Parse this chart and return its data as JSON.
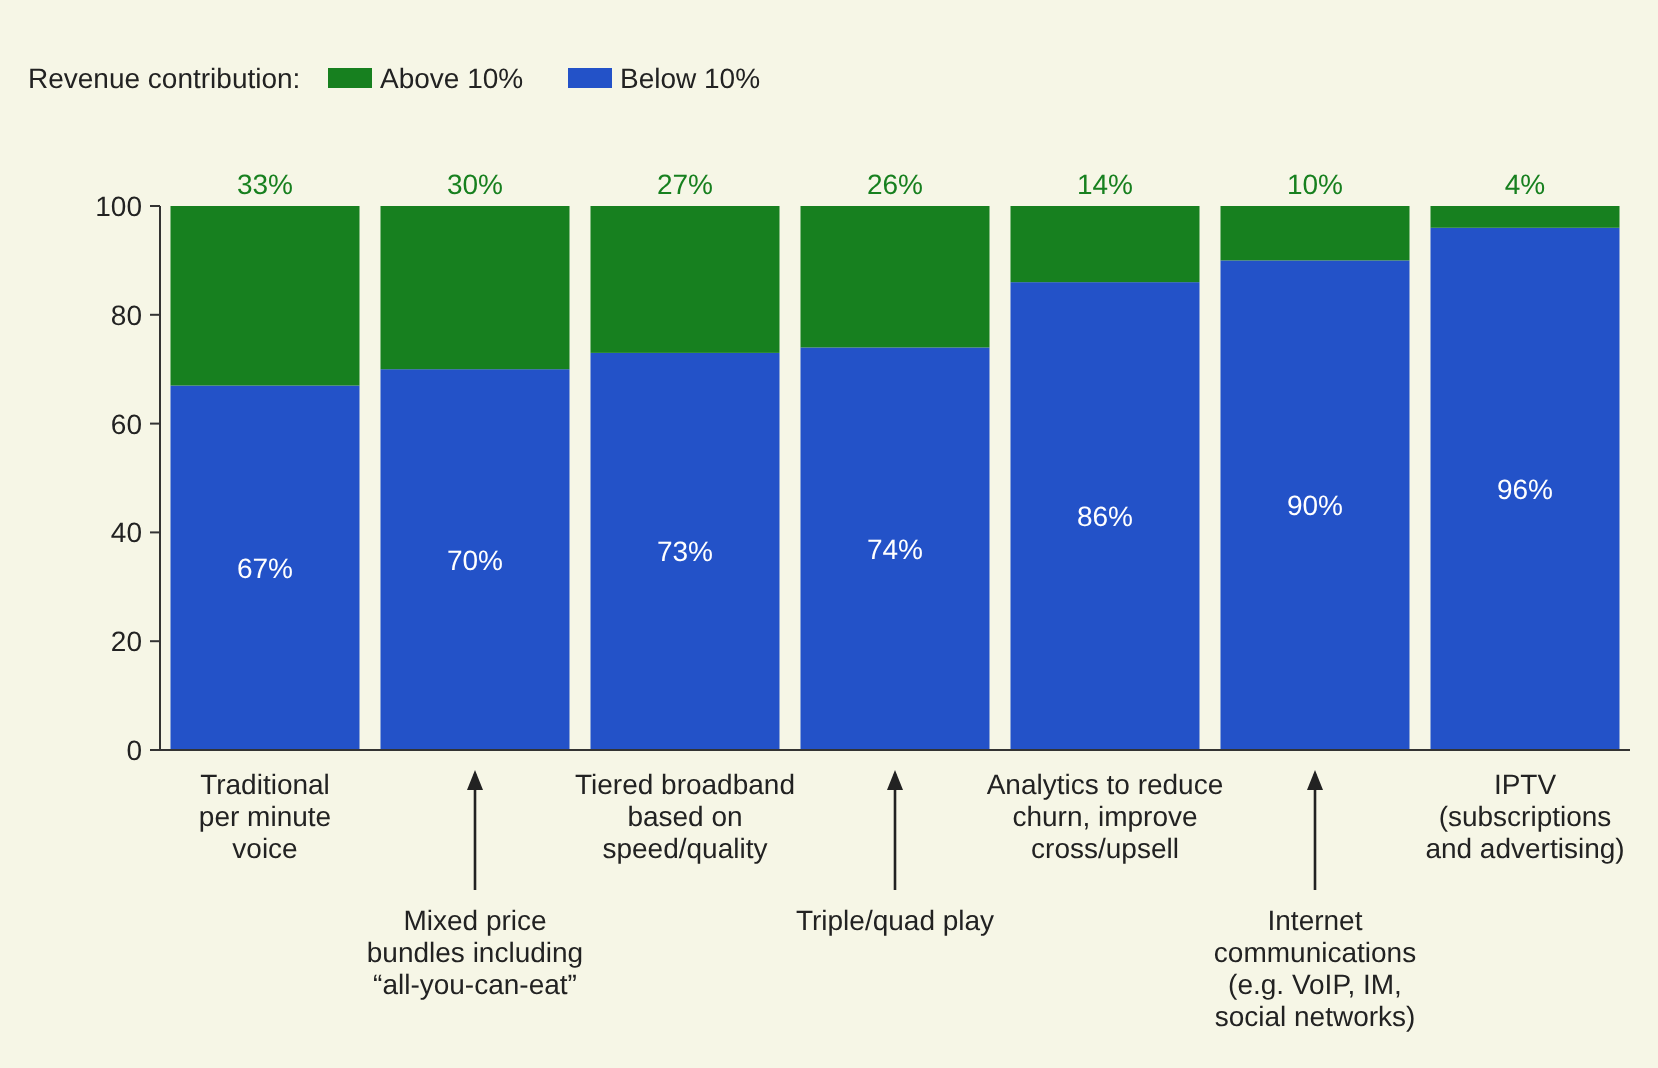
{
  "chart_data": {
    "type": "bar",
    "stacked": true,
    "legend_title": "Revenue contribution:",
    "legend": "top left",
    "categories": [
      "Traditional\nper minute\nvoice",
      "Mixed price\nbundles including\n“all-you-can-eat”",
      "Tiered broadband\nbased on\nspeed/quality",
      "Triple/quad play",
      "Analytics to reduce\nchurn, improve\ncross/upsell",
      "Internet\ncommunications\n(e.g. VoIP, IM,\nsocial networks)",
      "IPTV\n(subscriptions\nand advertising)"
    ],
    "series": [
      {
        "name": "Below 10%",
        "color": "#2352c8",
        "values": [
          67,
          70,
          73,
          74,
          86,
          90,
          96
        ],
        "value_labels": [
          "67%",
          "70%",
          "73%",
          "74%",
          "86%",
          "90%",
          "96%"
        ]
      },
      {
        "name": "Above 10%",
        "color": "#17801f",
        "values": [
          33,
          30,
          27,
          26,
          14,
          10,
          4
        ],
        "value_labels": [
          "33%",
          "30%",
          "27%",
          "26%",
          "14%",
          "10%",
          "4%"
        ]
      }
    ],
    "ylim": [
      0,
      100
    ],
    "yticks": [
      0,
      20,
      40,
      60,
      80,
      100
    ],
    "grid": false
  }
}
